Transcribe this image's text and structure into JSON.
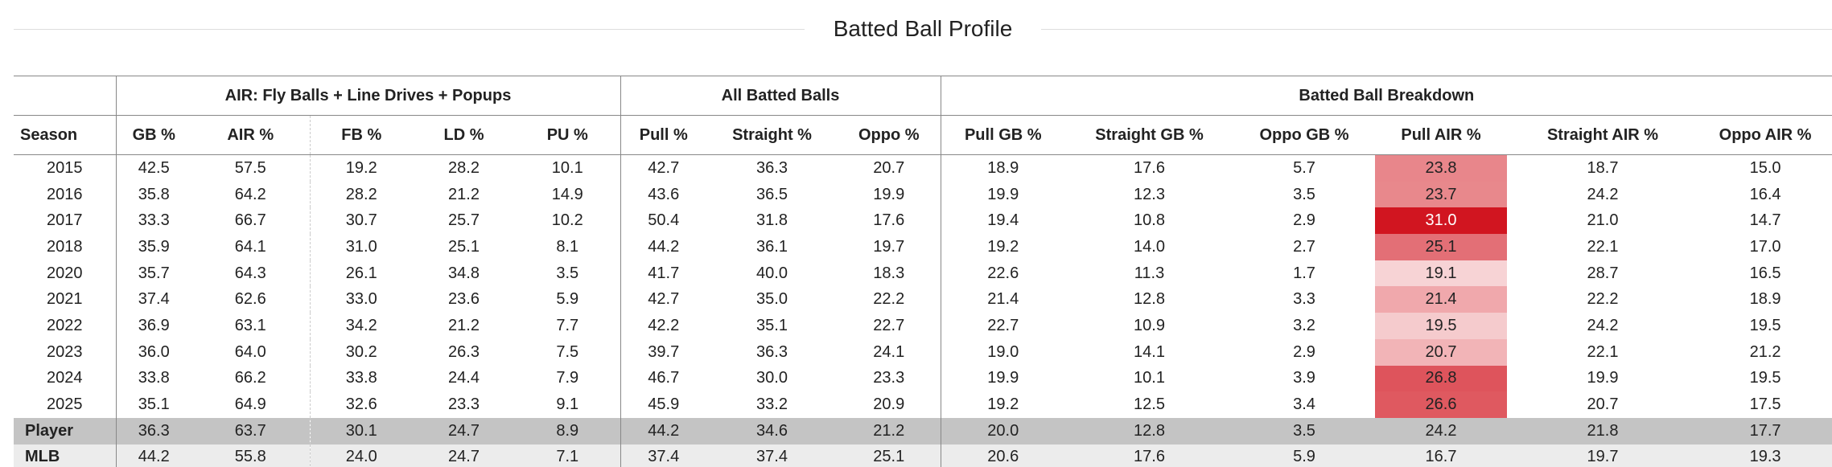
{
  "title": "Batted Ball Profile",
  "table": {
    "groups": [
      {
        "label": "AIR: Fly Balls + Line Drives + Popups",
        "span": 5
      },
      {
        "label": "All Batted Balls",
        "span": 3
      },
      {
        "label": "Batted Ball Breakdown",
        "span": 6
      }
    ],
    "columns": [
      "Season",
      "GB %",
      "AIR %",
      "FB %",
      "LD %",
      "PU %",
      "Pull %",
      "Straight %",
      "Oppo %",
      "Pull GB %",
      "Straight GB %",
      "Oppo GB %",
      "Pull AIR %",
      "Straight AIR %",
      "Oppo AIR %"
    ],
    "rows": [
      [
        "2015",
        "42.5",
        "57.5",
        "19.2",
        "28.2",
        "10.1",
        "42.7",
        "36.3",
        "20.7",
        "18.9",
        "17.6",
        "5.7",
        "23.8",
        "18.7",
        "15.0"
      ],
      [
        "2016",
        "35.8",
        "64.2",
        "28.2",
        "21.2",
        "14.9",
        "43.6",
        "36.5",
        "19.9",
        "19.9",
        "12.3",
        "3.5",
        "23.7",
        "24.2",
        "16.4"
      ],
      [
        "2017",
        "33.3",
        "66.7",
        "30.7",
        "25.7",
        "10.2",
        "50.4",
        "31.8",
        "17.6",
        "19.4",
        "10.8",
        "2.9",
        "31.0",
        "21.0",
        "14.7"
      ],
      [
        "2018",
        "35.9",
        "64.1",
        "31.0",
        "25.1",
        "8.1",
        "44.2",
        "36.1",
        "19.7",
        "19.2",
        "14.0",
        "2.7",
        "25.1",
        "22.1",
        "17.0"
      ],
      [
        "2020",
        "35.7",
        "64.3",
        "26.1",
        "34.8",
        "3.5",
        "41.7",
        "40.0",
        "18.3",
        "22.6",
        "11.3",
        "1.7",
        "19.1",
        "28.7",
        "16.5"
      ],
      [
        "2021",
        "37.4",
        "62.6",
        "33.0",
        "23.6",
        "5.9",
        "42.7",
        "35.0",
        "22.2",
        "21.4",
        "12.8",
        "3.3",
        "21.4",
        "22.2",
        "18.9"
      ],
      [
        "2022",
        "36.9",
        "63.1",
        "34.2",
        "21.2",
        "7.7",
        "42.2",
        "35.1",
        "22.7",
        "22.7",
        "10.9",
        "3.2",
        "19.5",
        "24.2",
        "19.5"
      ],
      [
        "2023",
        "36.0",
        "64.0",
        "30.2",
        "26.3",
        "7.5",
        "39.7",
        "36.3",
        "24.1",
        "19.0",
        "14.1",
        "2.9",
        "20.7",
        "22.1",
        "21.2"
      ],
      [
        "2024",
        "33.8",
        "66.2",
        "33.8",
        "24.4",
        "7.9",
        "46.7",
        "30.0",
        "23.3",
        "19.9",
        "10.1",
        "3.9",
        "26.8",
        "19.9",
        "19.5"
      ],
      [
        "2025",
        "35.1",
        "64.9",
        "32.6",
        "23.3",
        "9.1",
        "45.9",
        "33.2",
        "20.9",
        "19.2",
        "12.5",
        "3.4",
        "26.6",
        "20.7",
        "17.5"
      ],
      [
        "Player",
        "36.3",
        "63.7",
        "30.1",
        "24.7",
        "8.9",
        "44.2",
        "34.6",
        "21.2",
        "20.0",
        "12.8",
        "3.5",
        "24.2",
        "21.8",
        "17.7"
      ],
      [
        "MLB",
        "44.2",
        "55.8",
        "24.0",
        "24.7",
        "7.1",
        "37.4",
        "37.4",
        "25.1",
        "20.6",
        "17.6",
        "5.9",
        "16.7",
        "19.7",
        "19.3"
      ]
    ],
    "highlight": {
      "column": 12,
      "colors": [
        "#e8868b",
        "#e8888c",
        "#d11520",
        "#e36f76",
        "#f7d3d5",
        "#f0a8ac",
        "#f5cbcd",
        "#f2b4b7",
        "#de545c",
        "#df5960",
        null,
        null
      ]
    }
  }
}
